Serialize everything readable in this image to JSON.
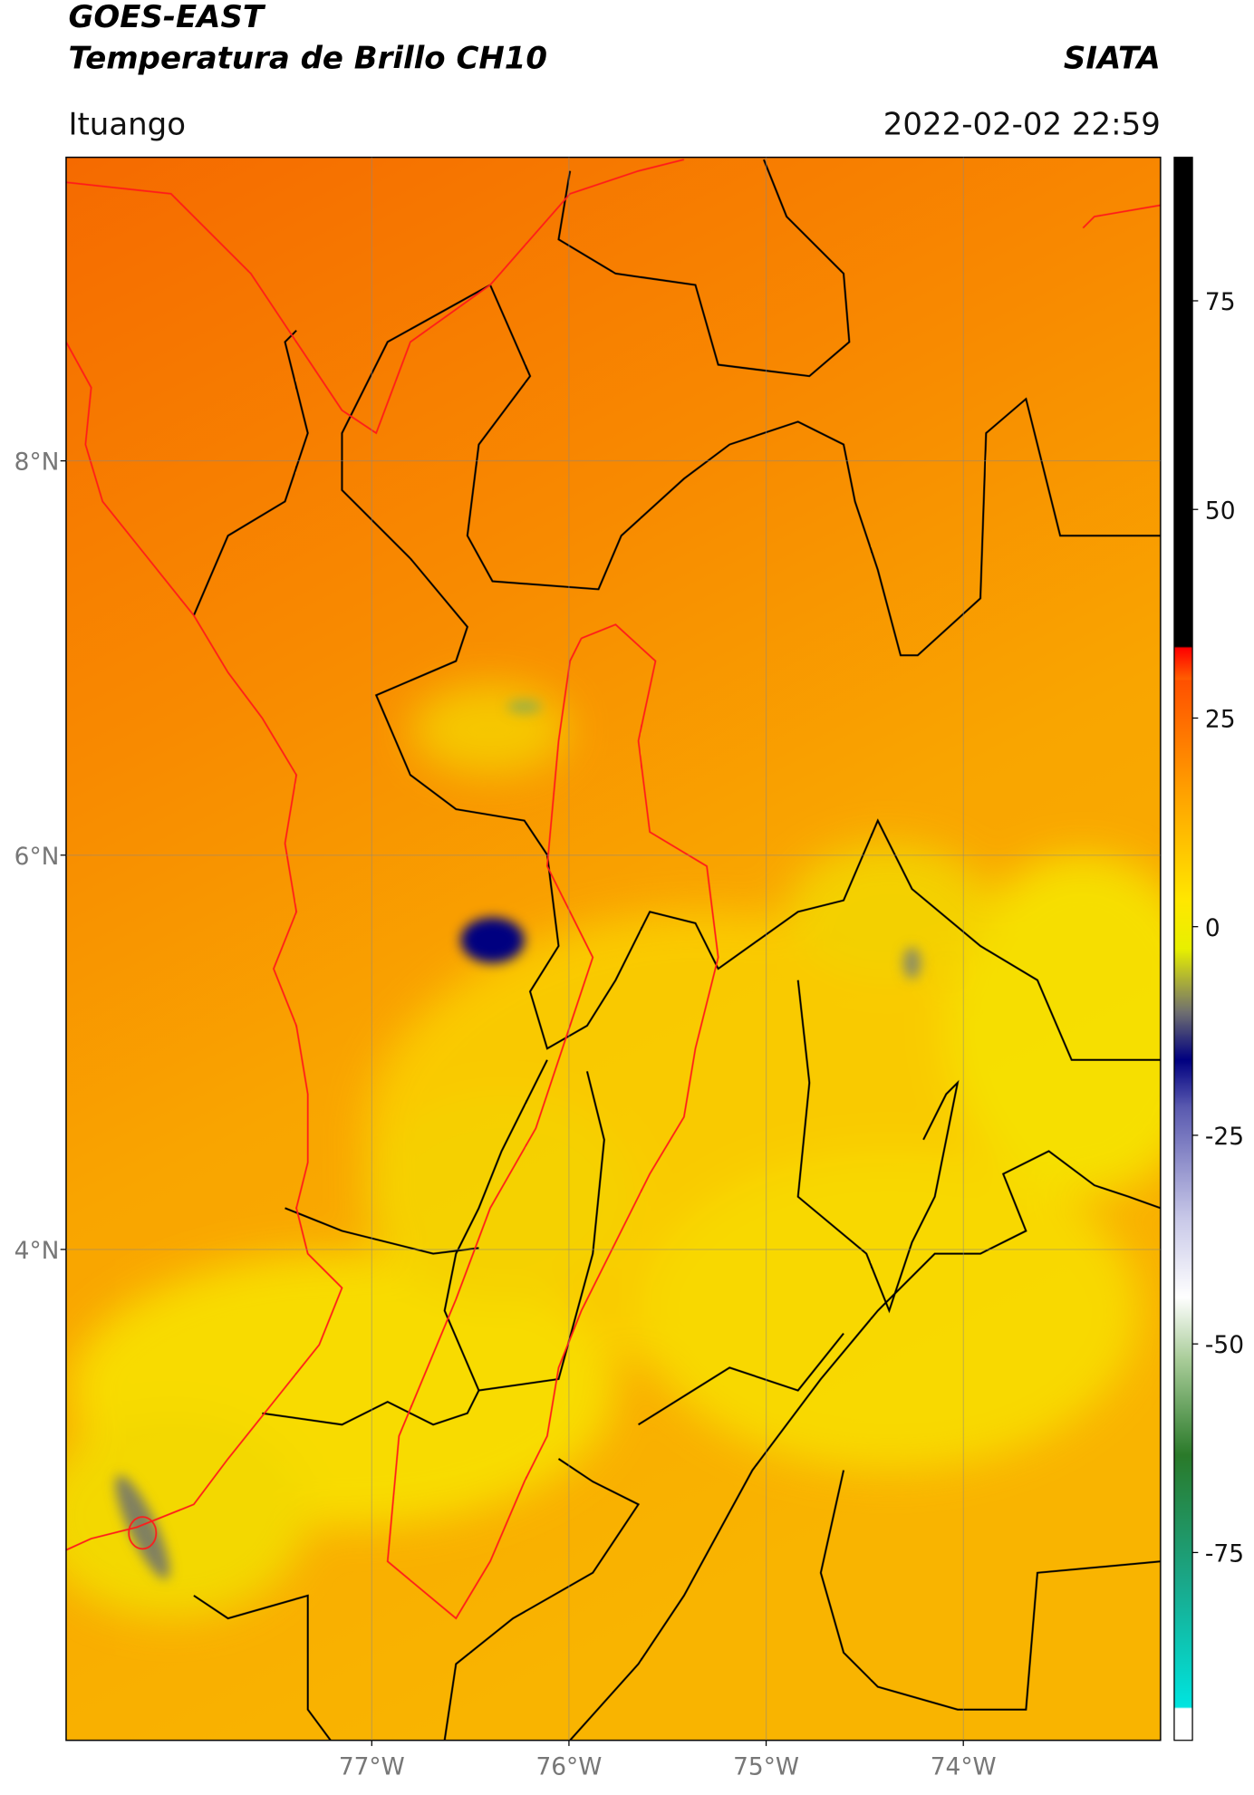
{
  "header": {
    "source": "GOES-EAST",
    "title": "Temperatura de Brillo CH10",
    "org": "SIATA",
    "location": "Ituango",
    "datetime": "2022-02-02 22:59"
  },
  "map": {
    "xlim": [
      -78.55,
      -73.0
    ],
    "ylim": [
      1.51,
      9.54
    ],
    "lat_ticks": [
      {
        "value": 8,
        "label": "8°N"
      },
      {
        "value": 6,
        "label": "6°N"
      },
      {
        "value": 4,
        "label": "4°N"
      }
    ],
    "lon_ticks": [
      {
        "value": -77,
        "label": "77°W"
      },
      {
        "value": -76,
        "label": "76°W"
      },
      {
        "value": -75,
        "label": "75°W"
      },
      {
        "value": -74,
        "label": "74°W"
      }
    ],
    "grid": true
  },
  "colorbar": {
    "lim": [
      -97.5,
      92.2
    ],
    "ticks": [
      75,
      50,
      25,
      0,
      -25,
      -50,
      -75
    ]
  }
}
